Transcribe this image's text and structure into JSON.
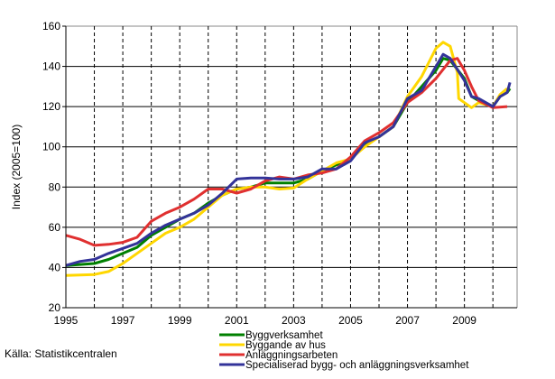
{
  "chart_data": {
    "type": "line",
    "title": "",
    "xlabel": "",
    "ylabel": "Index (2005=100)",
    "xlim": [
      1995,
      2010.85
    ],
    "ylim": [
      20,
      160
    ],
    "yticks": [
      20,
      40,
      60,
      80,
      100,
      120,
      140,
      160
    ],
    "xticks": [
      1995,
      1997,
      1999,
      2001,
      2003,
      2005,
      2007,
      2009
    ],
    "grid": {
      "horizontal": "solid",
      "vertical": "dashed-yearly"
    },
    "legend_placement": "bottom",
    "source": "Källa: Statistikcentralen",
    "series": [
      {
        "name": "Byggverksamhet",
        "color": "#008000",
        "x": [
          1995,
          1995.5,
          1996,
          1996.5,
          1997,
          1997.5,
          1998,
          1998.5,
          1999,
          1999.5,
          2000,
          2000.5,
          2001,
          2001.5,
          2002,
          2002.5,
          2003,
          2003.5,
          2004,
          2004.5,
          2005,
          2005.5,
          2006,
          2006.5,
          2007,
          2007.5,
          2008,
          2008.25,
          2008.5,
          2009,
          2009.25,
          2009.5,
          2010,
          2010.25,
          2010.5,
          2010.6
        ],
        "y": [
          41,
          41.5,
          42,
          44,
          47,
          50,
          56,
          60,
          64,
          67,
          72,
          76,
          79,
          80,
          82,
          82,
          82,
          84,
          88,
          91,
          94,
          101,
          105,
          110,
          122,
          130,
          138,
          144,
          143,
          134,
          125,
          123,
          120,
          125,
          127,
          129
        ]
      },
      {
        "name": "Byggande av hus",
        "color": "#ffd700",
        "x": [
          1995,
          1996,
          1996.5,
          1997,
          1997.5,
          1998,
          1998.5,
          1999,
          1999.5,
          2000,
          2000.5,
          2001,
          2001.5,
          2002,
          2002.5,
          2003,
          2003.5,
          2004,
          2004.5,
          2005,
          2005.5,
          2006,
          2006.5,
          2007,
          2007.5,
          2008,
          2008.25,
          2008.5,
          2008.75,
          2008.8,
          2009,
          2009.25,
          2009.5,
          2010,
          2010.25,
          2010.5
        ],
        "y": [
          36,
          36.5,
          38,
          42,
          47,
          52,
          57,
          60,
          64,
          70,
          76,
          79,
          80,
          80,
          79,
          79.5,
          84,
          88,
          92,
          94,
          100,
          105,
          110,
          125,
          135,
          149,
          152,
          150,
          137,
          124,
          122,
          119.5,
          122,
          120,
          126,
          129
        ]
      },
      {
        "name": "Anläggningsarbeten",
        "color": "#e03030",
        "x": [
          1995,
          1995.5,
          1996,
          1996.5,
          1997,
          1997.5,
          1998,
          1998.5,
          1999,
          1999.5,
          2000,
          2000.5,
          2001,
          2001.5,
          2002,
          2002.5,
          2003,
          2003.5,
          2004,
          2004.5,
          2005,
          2005.5,
          2006,
          2006.5,
          2007,
          2007.5,
          2008,
          2008.5,
          2008.75,
          2009,
          2009.25,
          2009.5,
          2010,
          2010.5
        ],
        "y": [
          56,
          54,
          51,
          51.5,
          52.5,
          55,
          63,
          67,
          70,
          74,
          79,
          79,
          77,
          79,
          83,
          85,
          84,
          86,
          87,
          89,
          95,
          103,
          107,
          112,
          122,
          127,
          134,
          143,
          144,
          138,
          130,
          123,
          119.5,
          120
        ]
      },
      {
        "name": "Specialiserad bygg- och anläggningsverksamhet",
        "color": "#333399",
        "x": [
          1995,
          1995.5,
          1996,
          1996.5,
          1997,
          1997.5,
          1998,
          1998.5,
          1999,
          1999.5,
          2000,
          2000.5,
          2001,
          2001.5,
          2002,
          2002.5,
          2003,
          2003.5,
          2004,
          2004.5,
          2005,
          2005.5,
          2006,
          2006.5,
          2007,
          2007.5,
          2008,
          2008.25,
          2008.5,
          2009,
          2009.25,
          2009.5,
          2010,
          2010.25,
          2010.5,
          2010.6
        ],
        "y": [
          41,
          43,
          44,
          47,
          49.5,
          52,
          57,
          61,
          64,
          67,
          71,
          77,
          84,
          84.5,
          84.5,
          84,
          84,
          85,
          89,
          89,
          93,
          102,
          105,
          110,
          124,
          128,
          140,
          146,
          144,
          133,
          125,
          124,
          120,
          125,
          127,
          132
        ]
      }
    ]
  }
}
